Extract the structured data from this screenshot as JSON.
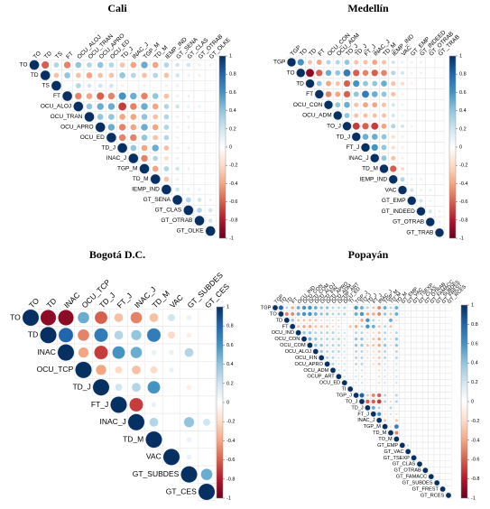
{
  "chart_data": [
    {
      "type": "corrplot",
      "title": "Cali",
      "labels": [
        "TO",
        "TD",
        "TS",
        "FT",
        "OCU_ALOJ",
        "OCU_TRAN",
        "OCU_APRO",
        "OCU_ED",
        "TD_J",
        "INAC_J",
        "TGP_M",
        "TD_M",
        "IEMP_IND",
        "GT_SENA",
        "GT_CLAS",
        "GT_OTRAB",
        "GT_OLKE"
      ],
      "values": [
        [
          1,
          -0.6,
          0.3,
          -0.5,
          0.4,
          0.3,
          0.4,
          0.3,
          -0.3,
          -0.4,
          0.5,
          -0.4,
          0.3,
          0.2,
          0.2,
          0.1,
          0.1
        ],
        [
          1,
          -0.3,
          0.4,
          -0.3,
          -0.4,
          -0.3,
          -0.3,
          0.4,
          0.3,
          -0.3,
          0.3,
          -0.3,
          0.2,
          0.1,
          -0.1,
          0
        ],
        [
          1,
          0,
          0.3,
          0.2,
          0.2,
          0.2,
          -0.1,
          0,
          0.1,
          0,
          0.1,
          0.1,
          0,
          0,
          0
        ],
        [
          1,
          -0.5,
          -0.4,
          -0.6,
          -0.5,
          0.6,
          0.5,
          -0.5,
          0.4,
          -0.3,
          0.1,
          0.1,
          0,
          0
        ],
        [
          1,
          0.4,
          0.5,
          0.5,
          -0.7,
          -0.5,
          0.5,
          -0.4,
          0.3,
          0.2,
          0.1,
          0.1,
          0
        ],
        [
          1,
          0.4,
          0.4,
          -0.4,
          -0.4,
          0.4,
          -0.3,
          0.3,
          0.1,
          0.1,
          0,
          0
        ],
        [
          1,
          0.5,
          -0.5,
          -0.4,
          0.5,
          -0.4,
          0.3,
          0.1,
          0.1,
          0,
          0
        ],
        [
          1,
          -0.5,
          -0.5,
          0.4,
          -0.3,
          0.3,
          0.1,
          0,
          0,
          0
        ],
        [
          1,
          0.4,
          -0.4,
          0.5,
          -0.3,
          0.1,
          0.1,
          0,
          0
        ],
        [
          1,
          -0.5,
          0.3,
          -0.2,
          0.1,
          0,
          0,
          0
        ],
        [
          1,
          -0.4,
          0.3,
          0.2,
          0.1,
          0,
          0
        ],
        [
          1,
          -0.3,
          0.1,
          0,
          0,
          0
        ],
        [
          1,
          0.2,
          0.1,
          0.1,
          0
        ],
        [
          1,
          0.3,
          0.2,
          0.1
        ],
        [
          1,
          0.3,
          0.2
        ],
        [
          1,
          0.2
        ],
        [
          1
        ]
      ],
      "clim": [
        -1,
        1
      ],
      "cticks": [
        -1,
        -0.8,
        -0.6,
        -0.4,
        -0.2,
        0,
        0.2,
        0.4,
        0.6,
        0.8,
        1
      ],
      "colors": [
        "#67001F",
        "#B2182B",
        "#D6604D",
        "#F4A582",
        "#FDDBC7",
        "#FFFFFF",
        "#D1E5F0",
        "#92C5DE",
        "#4393C3",
        "#2166AC",
        "#053061"
      ]
    },
    {
      "type": "corrplot",
      "title": "Medellín",
      "labels": [
        "TGP",
        "TO",
        "TD",
        "FT",
        "OCU_CON",
        "OCU_ADM",
        "TO_J",
        "TD_J",
        "FT_J",
        "INAC_J",
        "TD_M",
        "IEMP_IND",
        "VAC",
        "GT_EMP",
        "GT_INDEED",
        "GT_OTRAB",
        "GT_TRAB"
      ],
      "values": [
        [
          1,
          0.6,
          -0.3,
          -0.4,
          0.3,
          0.3,
          0.4,
          -0.3,
          -0.3,
          -0.4,
          -0.3,
          0.2,
          0.1,
          0.1,
          0.1,
          0,
          0
        ],
        [
          1,
          -0.9,
          -0.6,
          0.5,
          0.4,
          0.7,
          -0.6,
          -0.5,
          -0.6,
          -0.5,
          0.3,
          0.2,
          0.1,
          0.1,
          0,
          0
        ],
        [
          1,
          0.4,
          -0.4,
          -0.3,
          -0.6,
          0.6,
          0.4,
          0.4,
          0.5,
          -0.3,
          -0.2,
          -0.1,
          0,
          0,
          0
        ],
        [
          1,
          -0.5,
          -0.4,
          -0.6,
          0.4,
          0.7,
          0.5,
          0.4,
          -0.3,
          -0.1,
          0,
          0,
          0,
          0
        ],
        [
          1,
          0.4,
          0.5,
          -0.3,
          -0.4,
          -0.4,
          -0.3,
          0.2,
          0.1,
          0,
          0,
          0,
          0
        ],
        [
          1,
          0.4,
          -0.3,
          -0.3,
          -0.3,
          -0.3,
          0.2,
          0.1,
          0,
          0,
          0,
          0
        ],
        [
          1,
          -0.7,
          -0.6,
          -0.7,
          -0.4,
          0.3,
          0.2,
          0.1,
          0,
          0,
          0
        ],
        [
          1,
          0.5,
          0.5,
          0.4,
          -0.2,
          -0.1,
          0,
          0,
          0,
          0
        ],
        [
          1,
          0.6,
          0.4,
          -0.2,
          -0.1,
          0,
          0,
          0,
          0
        ],
        [
          1,
          0.4,
          -0.3,
          -0.1,
          0,
          0,
          0,
          0
        ],
        [
          1,
          -0.6,
          -0.2,
          0,
          0,
          0,
          0
        ],
        [
          1,
          0.3,
          0.1,
          0.1,
          0,
          0
        ],
        [
          1,
          0.2,
          0.1,
          0.1,
          0
        ],
        [
          1,
          0.2,
          0.1,
          0
        ],
        [
          1,
          0.2,
          0.1
        ],
        [
          1,
          0.1
        ],
        [
          1
        ]
      ],
      "clim": [
        -1,
        1
      ],
      "cticks": [
        -1,
        -0.8,
        -0.6,
        -0.4,
        -0.2,
        0,
        0.2,
        0.4,
        0.6,
        0.8,
        1
      ],
      "colors": [
        "#67001F",
        "#B2182B",
        "#D6604D",
        "#F4A582",
        "#FDDBC7",
        "#FFFFFF",
        "#D1E5F0",
        "#92C5DE",
        "#4393C3",
        "#2166AC",
        "#053061"
      ]
    },
    {
      "type": "corrplot",
      "title": "Bogotá D.C.",
      "labels": [
        "TO",
        "TD",
        "INAC",
        "OCU_TCP",
        "TD_J",
        "FT_J",
        "INAC_J",
        "TD_M",
        "VAC",
        "GT_SUBDES",
        "GT_CES"
      ],
      "values": [
        [
          1,
          -0.9,
          -0.9,
          0.5,
          -0.6,
          -0.3,
          -0.5,
          -0.3,
          0.2,
          0.1,
          0
        ],
        [
          1,
          0.8,
          -0.5,
          0.7,
          0.3,
          0.4,
          0.7,
          -0.2,
          -0.1,
          0
        ],
        [
          1,
          -0.4,
          -0.7,
          0.6,
          0.5,
          0.1,
          0.1,
          0.3,
          0
        ],
        [
          1,
          -0.4,
          -0.2,
          -0.3,
          -0.2,
          0.1,
          0,
          0
        ],
        [
          1,
          0.2,
          0.3,
          0.6,
          0,
          -0.1,
          0
        ],
        [
          1,
          -0.7,
          0.1,
          0,
          0,
          0
        ],
        [
          1,
          0.3,
          0,
          0.4,
          0.2
        ],
        [
          1,
          0,
          0.1,
          0
        ],
        [
          1,
          0.1,
          0
        ],
        [
          1,
          0.5
        ],
        [
          1
        ]
      ],
      "clim": [
        -1,
        1
      ],
      "cticks": [
        -1,
        -0.8,
        -0.6,
        -0.4,
        -0.2,
        0,
        0.2,
        0.4,
        0.6,
        0.8,
        1
      ],
      "colors": [
        "#67001F",
        "#B2182B",
        "#D6604D",
        "#F4A582",
        "#FDDBC7",
        "#FFFFFF",
        "#D1E5F0",
        "#92C5DE",
        "#4393C3",
        "#2166AC",
        "#053061"
      ]
    },
    {
      "type": "corrplot",
      "title": "Popayán",
      "labels": [
        "TGP",
        "TO",
        "TD",
        "FT",
        "OCU_IND",
        "OCU_CON",
        "OCU_COM",
        "OCU_ALOJ",
        "OCU_FIN",
        "OCU_APRO",
        "OCU_ADM",
        "OCUP_ART",
        "OCU_ED",
        "TI",
        "TGP_J",
        "TO_J",
        "TD_J",
        "FT_J",
        "INAC_J",
        "TGP_M",
        "TD_M",
        "TO_M",
        "GT_EMP",
        "GT_VAC",
        "GT_TSEXP",
        "GT_CLAS",
        "GT_OTRAB",
        "GT_FAMACC",
        "GT_SUBDES",
        "GT_FREST",
        "GT_RCES"
      ],
      "values": [
        [
          1,
          0.8,
          0.3,
          -0.4,
          0.5,
          0.6,
          0.6,
          0.5,
          0.4,
          0.4,
          0.3,
          0.3,
          0.3,
          0.1,
          0.6,
          0.5,
          0.3,
          -0.3,
          -0.5,
          0.5,
          0.3,
          0.5,
          0.1,
          0.1,
          0,
          0,
          0,
          0,
          0,
          0,
          0
        ],
        [
          1,
          -0.5,
          -0.5,
          0.5,
          0.6,
          0.6,
          0.5,
          0.4,
          0.4,
          0.3,
          0.3,
          0.3,
          0.1,
          0.5,
          0.6,
          -0.4,
          -0.4,
          -0.5,
          0.4,
          -0.3,
          0.5,
          0.1,
          0.1,
          0,
          0,
          0,
          0,
          0,
          0
        ],
        [
          1,
          0.4,
          -0.3,
          -0.3,
          -0.3,
          -0.3,
          -0.2,
          -0.2,
          -0.2,
          -0.2,
          -0.1,
          0.1,
          -0.2,
          -0.4,
          0.6,
          0.3,
          0.2,
          -0.1,
          0.5,
          -0.2,
          0,
          0,
          0,
          0,
          0,
          0,
          0,
          0,
          0
        ],
        [
          1,
          -0.3,
          -0.4,
          -0.4,
          -0.3,
          -0.3,
          -0.3,
          -0.2,
          -0.2,
          0,
          -0.3,
          -0.4,
          0.3,
          0.6,
          0.5,
          -0.3,
          0.3,
          -0.3,
          0,
          0,
          0,
          0,
          0,
          0,
          0,
          0,
          0,
          0
        ],
        [
          1,
          0.4,
          0.4,
          0.3,
          0.3,
          0.3,
          0.3,
          0.2,
          0.2,
          0,
          0.3,
          0.3,
          -0.2,
          -0.2,
          -0.3,
          0.3,
          -0.2,
          0.3,
          0,
          0,
          0,
          0,
          0,
          0,
          0,
          0,
          0
        ],
        [
          1,
          0.5,
          0.4,
          0.3,
          0.3,
          0.3,
          0.3,
          0.2,
          0.1,
          0.4,
          0.4,
          -0.2,
          -0.3,
          -0.4,
          0.3,
          -0.2,
          0.4,
          0,
          0,
          0,
          0,
          0,
          0,
          0,
          0,
          0
        ],
        [
          1,
          0.4,
          0.4,
          0.3,
          0.3,
          0.3,
          0.2,
          0.1,
          0.4,
          0.4,
          -0.3,
          -0.3,
          -0.4,
          0.4,
          -0.2,
          0.4,
          0,
          0,
          0,
          0,
          0,
          0,
          0,
          0,
          0
        ],
        [
          1,
          0.4,
          0.3,
          0.3,
          0.3,
          0.2,
          0.1,
          0.3,
          0.3,
          -0.2,
          -0.2,
          -0.3,
          0.3,
          -0.1,
          0.3,
          0,
          0,
          0,
          0,
          0,
          0,
          0,
          0,
          0
        ],
        [
          1,
          0.3,
          0.3,
          0.2,
          0.2,
          0.1,
          0.3,
          0.3,
          -0.2,
          -0.2,
          -0.3,
          0.3,
          -0.1,
          0.3,
          0,
          0,
          0,
          0,
          0,
          0,
          0,
          0,
          0
        ],
        [
          1,
          0.3,
          0.2,
          0.2,
          0.1,
          0.3,
          0.3,
          -0.1,
          -0.2,
          -0.3,
          0.2,
          -0.1,
          0.2,
          0,
          0,
          0,
          0,
          0,
          0,
          0,
          0,
          0
        ],
        [
          1,
          0.2,
          0.2,
          0.1,
          0.2,
          0.2,
          -0.1,
          -0.1,
          -0.2,
          0.2,
          -0.1,
          0.2,
          0,
          0,
          0,
          0,
          0,
          0,
          0,
          0,
          0
        ],
        [
          1,
          0.2,
          0.1,
          0.2,
          0.2,
          -0.1,
          -0.1,
          -0.2,
          0.2,
          -0.1,
          0.2,
          0,
          0,
          0,
          0,
          0,
          0,
          0,
          0,
          0
        ],
        [
          1,
          0.1,
          0.2,
          0.2,
          -0.1,
          -0.1,
          -0.2,
          0.2,
          -0.1,
          0.2,
          0,
          0,
          0,
          0,
          0,
          0,
          0,
          0,
          0
        ],
        [
          1,
          0.1,
          0.1,
          0,
          0,
          0,
          0.1,
          0,
          0.1,
          0,
          0,
          0,
          0,
          0,
          0,
          0,
          0,
          0
        ],
        [
          1,
          0.8,
          -0.3,
          -0.5,
          -0.6,
          0.3,
          -0.1,
          0.3,
          0,
          0,
          0,
          0,
          0,
          0,
          0,
          0,
          0
        ],
        [
          1,
          -0.6,
          -0.6,
          -0.7,
          0.3,
          -0.2,
          0.3,
          0,
          0,
          0,
          0,
          0,
          0,
          0,
          0,
          0
        ],
        [
          1,
          0.5,
          0.3,
          -0.1,
          0.3,
          -0.1,
          0,
          0,
          0,
          0,
          0,
          0,
          0,
          0,
          0
        ],
        [
          1,
          0.6,
          -0.2,
          0.2,
          -0.2,
          0,
          0,
          0,
          0,
          0,
          0,
          0,
          0,
          0
        ],
        [
          1,
          -0.3,
          0.1,
          -0.3,
          0,
          0,
          0,
          0,
          0,
          0,
          0,
          0,
          0
        ],
        [
          1,
          -0.2,
          0.7,
          0,
          0,
          0,
          0,
          0,
          0,
          0,
          0,
          0
        ],
        [
          1,
          -0.5,
          0,
          0,
          0,
          0,
          0,
          0,
          0,
          0,
          0
        ],
        [
          1,
          0,
          0,
          0,
          0,
          0,
          0,
          0,
          0,
          0
        ],
        [
          1,
          0.2,
          0.1,
          0.1,
          0,
          0,
          0,
          0,
          0
        ],
        [
          1,
          0.1,
          0.1,
          0,
          0,
          0,
          0,
          0
        ],
        [
          1,
          0.1,
          0,
          0,
          0,
          0,
          0
        ],
        [
          1,
          0.1,
          0,
          0,
          0,
          0
        ],
        [
          1,
          0,
          0,
          0,
          0
        ],
        [
          1,
          0,
          0,
          0
        ],
        [
          1,
          0,
          0
        ],
        [
          1,
          0
        ],
        [
          1
        ]
      ],
      "clim": [
        -1,
        1
      ],
      "cticks": [
        -1,
        -0.8,
        -0.6,
        -0.4,
        -0.2,
        0,
        0.2,
        0.4,
        0.6,
        0.8,
        1
      ],
      "colors": [
        "#67001F",
        "#B2182B",
        "#D6604D",
        "#F4A582",
        "#FDDBC7",
        "#FFFFFF",
        "#D1E5F0",
        "#92C5DE",
        "#4393C3",
        "#2166AC",
        "#053061"
      ]
    }
  ]
}
